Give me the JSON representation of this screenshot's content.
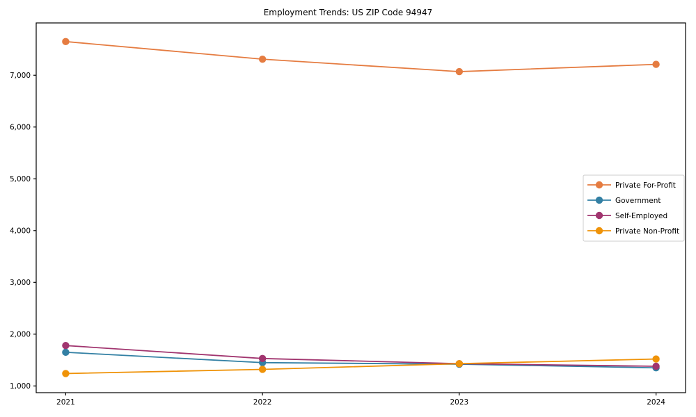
{
  "chart_data": {
    "type": "line",
    "title": "Employment Trends: US ZIP Code 94947",
    "categories": [
      2021,
      2022,
      2023,
      2024
    ],
    "series": [
      {
        "name": "Private For-Profit",
        "color": "#E57C41",
        "values": [
          7650,
          7310,
          7070,
          7210
        ]
      },
      {
        "name": "Government",
        "color": "#3380A4",
        "values": [
          1650,
          1450,
          1420,
          1350
        ]
      },
      {
        "name": "Self-Employed",
        "color": "#A1356F",
        "values": [
          1780,
          1530,
          1430,
          1380
        ]
      },
      {
        "name": "Private Non-Profit",
        "color": "#EF9309",
        "values": [
          1240,
          1320,
          1430,
          1520
        ]
      }
    ],
    "xtick_labels": [
      "2021",
      "2022",
      "2023",
      "2024"
    ],
    "yticks": [
      1000,
      2000,
      3000,
      4000,
      5000,
      6000,
      7000
    ],
    "ytick_labels": [
      "1,000",
      "2,000",
      "3,000",
      "4,000",
      "5,000",
      "6,000",
      "7,000"
    ],
    "xlim": [
      2020.85,
      2024.15
    ],
    "ylim": [
      870,
      8010
    ],
    "grid": false,
    "legend_position": "center right",
    "xlabel": "",
    "ylabel": "",
    "axis_color": "#000000",
    "legend_border_color": "#cccccc"
  }
}
